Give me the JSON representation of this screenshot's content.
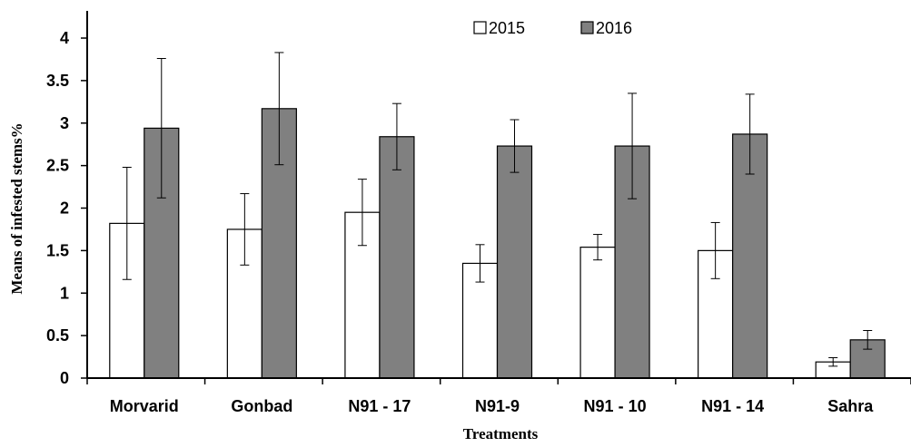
{
  "chart_data": {
    "type": "bar",
    "title": "",
    "xlabel": "Treatments",
    "ylabel": "Means of infested stems%",
    "categories": [
      "Morvarid",
      "Gonbad",
      "N91 - 17",
      "N91-9",
      "N91 - 10",
      "N91 - 14",
      "Sahra"
    ],
    "ylim": [
      0,
      4
    ],
    "yticks": [
      "0",
      "0.5",
      "1",
      "1.5",
      "2",
      "2.5",
      "3",
      "3.5",
      "4"
    ],
    "grid": false,
    "legend": "top-center",
    "series": [
      {
        "name": "2015",
        "color": "#ffffff",
        "values": [
          1.82,
          1.75,
          1.95,
          1.35,
          1.54,
          1.5,
          0.19
        ],
        "error": [
          0.66,
          0.42,
          0.39,
          0.22,
          0.15,
          0.33,
          0.05
        ]
      },
      {
        "name": "2016",
        "color": "#808080",
        "values": [
          2.94,
          3.17,
          2.84,
          2.73,
          2.73,
          2.87,
          0.45
        ],
        "error": [
          0.82,
          0.66,
          0.39,
          0.31,
          0.62,
          0.47,
          0.11
        ]
      }
    ]
  }
}
